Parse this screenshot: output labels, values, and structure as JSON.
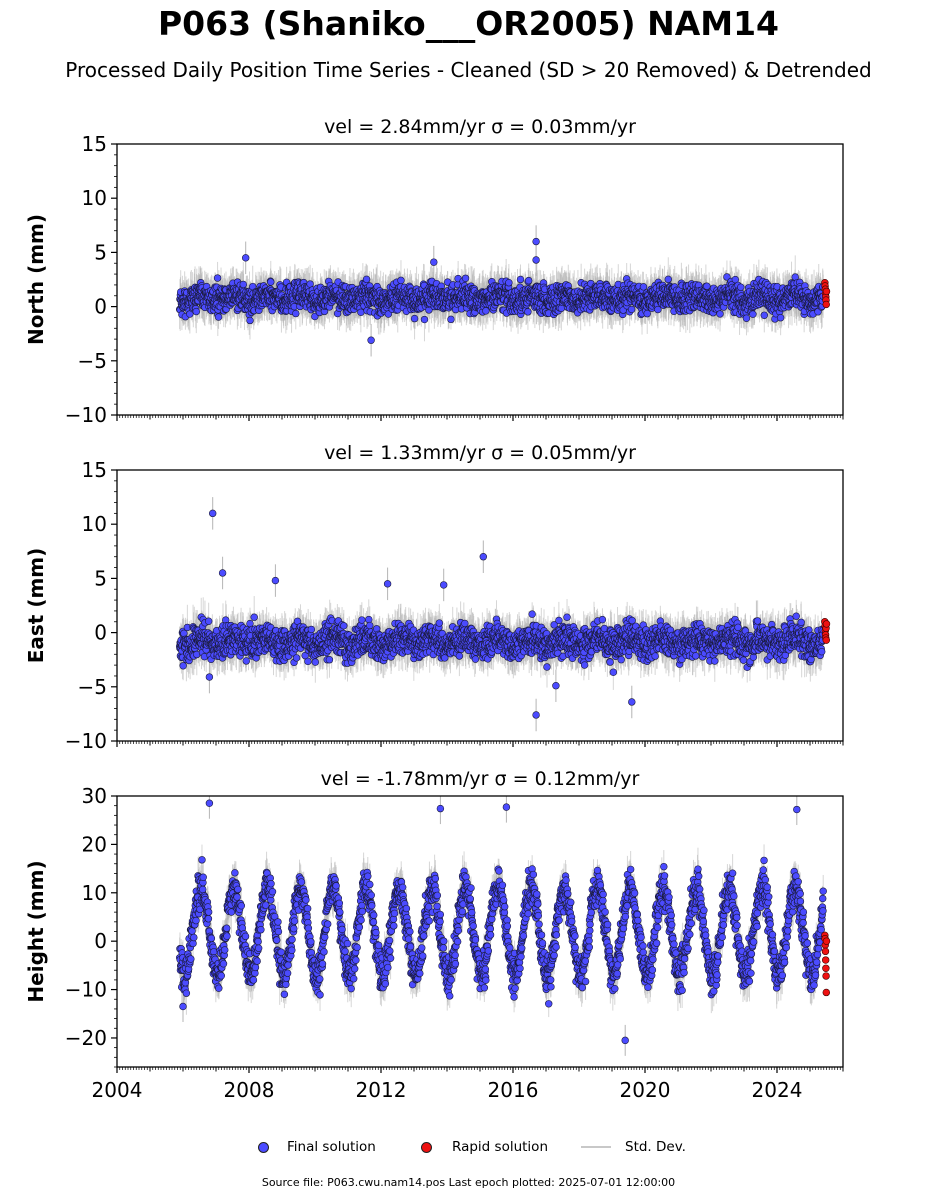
{
  "title": "P063 (Shaniko___OR2005) NAM14",
  "subtitle": "Processed Daily Position Time Series - Cleaned (SD > 20 Removed) & Detrended",
  "footer": "Source file: P063.cwu.nam14.pos  Last epoch plotted: 2025-07-01 12:00:00",
  "legend": {
    "final": "Final solution",
    "rapid": "Rapid solution",
    "stddev": "Std. Dev."
  },
  "colors": {
    "final": "#4b4bff",
    "rapid": "#ee1111",
    "stddev": "#b4b4b4"
  },
  "chart_data": [
    {
      "type": "scatter",
      "title": "vel = 2.84mm/yr   σ = 0.03mm/yr",
      "ylabel": "North (mm)",
      "ylim": [
        -10,
        15
      ],
      "yticks": [
        -10,
        -5,
        0,
        5,
        10,
        15
      ],
      "xlim": [
        2004.0,
        2026.0
      ],
      "xticks": [
        2004,
        2008,
        2012,
        2016,
        2020,
        2024
      ],
      "show_xticklabels": false,
      "series": [
        {
          "name": "Final solution",
          "x_range": [
            2005.9,
            2025.4
          ],
          "center": 0.8,
          "spread": 1.1,
          "season_amp": 0.3
        },
        {
          "name": "Rapid solution",
          "x_range": [
            2025.45,
            2025.5
          ],
          "values": [
            2.2,
            1.9,
            1.6,
            1.2,
            0.9,
            0.6,
            0.2,
            1.4
          ]
        }
      ],
      "outliers": [
        [
          2016.7,
          6.0
        ],
        [
          2016.7,
          4.3
        ],
        [
          2007.9,
          4.5
        ],
        [
          2011.7,
          -3.1
        ],
        [
          2013.6,
          4.1
        ]
      ]
    },
    {
      "type": "scatter",
      "title": "vel = 1.33mm/yr   σ = 0.05mm/yr",
      "ylabel": "East (mm)",
      "ylim": [
        -10,
        15
      ],
      "yticks": [
        -10,
        -5,
        0,
        5,
        10,
        15
      ],
      "xlim": [
        2004.0,
        2026.0
      ],
      "xticks": [
        2004,
        2008,
        2012,
        2016,
        2020,
        2024
      ],
      "show_xticklabels": false,
      "series": [
        {
          "name": "Final solution",
          "x_range": [
            2005.9,
            2025.4
          ],
          "center": -0.8,
          "spread": 1.3,
          "season_amp": 0.4
        },
        {
          "name": "Rapid solution",
          "x_range": [
            2025.45,
            2025.5
          ],
          "values": [
            1.0,
            0.6,
            0.2,
            -0.2,
            -0.5,
            0.4,
            -0.7,
            0.8
          ]
        }
      ],
      "outliers": [
        [
          2006.9,
          11.0
        ],
        [
          2007.2,
          5.5
        ],
        [
          2015.1,
          7.0
        ],
        [
          2016.7,
          -7.6
        ],
        [
          2017.3,
          -4.9
        ],
        [
          2008.8,
          4.8
        ],
        [
          2012.2,
          4.5
        ],
        [
          2013.9,
          4.4
        ],
        [
          2019.6,
          -6.4
        ],
        [
          2006.8,
          -4.1
        ]
      ]
    },
    {
      "type": "scatter",
      "title": "vel = -1.78mm/yr   σ = 0.12mm/yr",
      "ylabel": "Height (mm)",
      "ylim": [
        -26,
        30
      ],
      "yticks": [
        -20,
        -10,
        0,
        10,
        20,
        30
      ],
      "xlim": [
        2004.0,
        2026.0
      ],
      "xticks": [
        2004,
        2008,
        2012,
        2016,
        2020,
        2024
      ],
      "xticklabels": [
        "2004",
        "2008",
        "2012",
        "2016",
        "2020",
        "2024"
      ],
      "show_xticklabels": true,
      "series": [
        {
          "name": "Final solution",
          "x_range": [
            2005.9,
            2025.4
          ],
          "center": 2.0,
          "spread": 3.5,
          "season_amp": 9.0
        },
        {
          "name": "Rapid solution",
          "x_range": [
            2025.45,
            2025.5
          ],
          "values": [
            1.2,
            0.5,
            -0.8,
            -2.1,
            -3.9,
            -5.6,
            -7.2,
            -10.6,
            0.0
          ]
        }
      ],
      "outliers": [
        [
          2006.8,
          28.5
        ],
        [
          2015.8,
          27.7
        ],
        [
          2013.8,
          27.4
        ],
        [
          2024.6,
          27.2
        ],
        [
          2019.4,
          -20.5
        ],
        [
          2006.0,
          -13.5
        ]
      ]
    }
  ]
}
